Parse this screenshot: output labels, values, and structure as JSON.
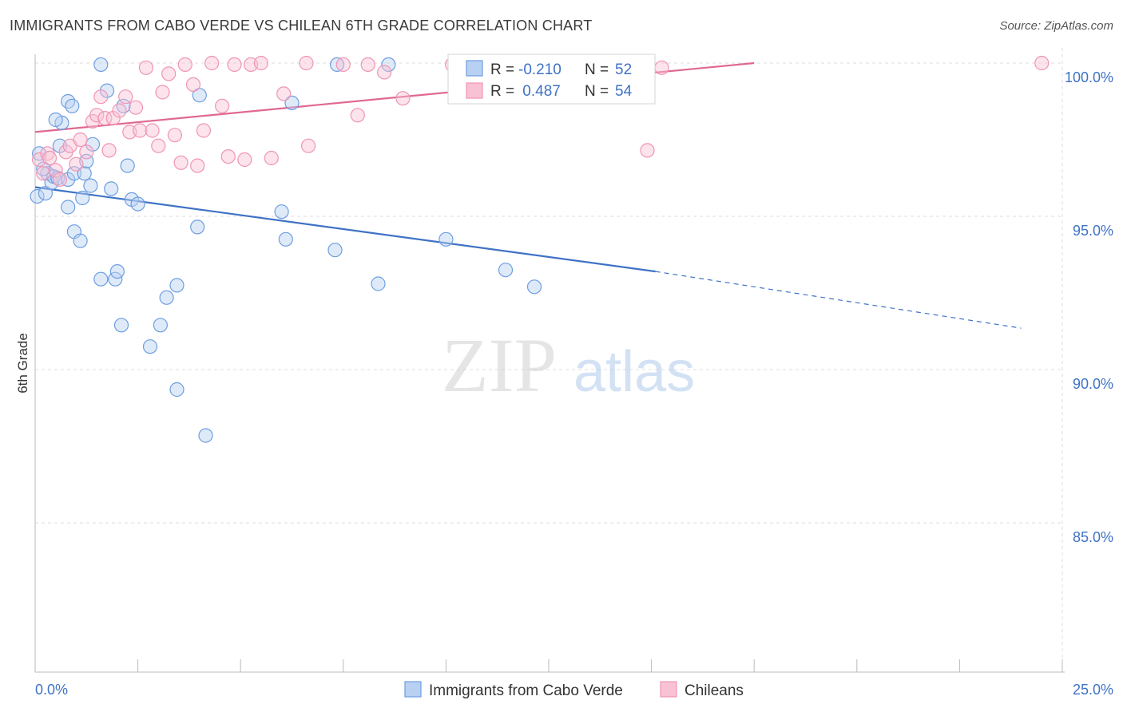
{
  "header": {
    "title": "IMMIGRANTS FROM CABO VERDE VS CHILEAN 6TH GRADE CORRELATION CHART",
    "source": "Source: ZipAtlas.com"
  },
  "watermark": {
    "zip": "ZIP",
    "atlas": "atlas"
  },
  "colors": {
    "blue": "#3f72c6",
    "blue_fill": "#b8d0f2",
    "blue_stroke": "#6e9ee0",
    "pink": "#e06890",
    "pink_fill": "#f8c2d4",
    "pink_stroke": "#ef95b4",
    "grid": "#dcdcdc"
  },
  "legend": {
    "rows": [
      {
        "r_label": "R =",
        "r_value": "-0.210",
        "n_label": "N =",
        "n_value": "52",
        "series": "blue"
      },
      {
        "r_label": "R =",
        "r_value": " 0.487",
        "n_label": "N =",
        "n_value": "54",
        "series": "pink"
      }
    ]
  },
  "chart_data": {
    "type": "scatter",
    "title": "IMMIGRANTS FROM CABO VERDE VS CHILEAN 6TH GRADE CORRELATION CHART",
    "xlabel": "",
    "ylabel": "6th Grade",
    "xlim": [
      0,
      25
    ],
    "ylim": [
      80.5,
      100.5
    ],
    "x_tick_labels": [
      "0.0%",
      "25.0%"
    ],
    "y_ticks": [
      85,
      90,
      95,
      100
    ],
    "y_tick_labels": [
      "85.0%",
      "90.0%",
      "95.0%",
      "100.0%"
    ],
    "grid": true,
    "legend_position": "bottom",
    "series": [
      {
        "name": "Immigrants from Cabo Verde",
        "color": "blue",
        "r": -0.21,
        "n": 52,
        "trend": {
          "x0": 0.0,
          "y0": 95.95,
          "x1": 15.1,
          "y1": 93.2,
          "dash_x1": 24.0,
          "dash_y1": 91.35
        },
        "points": [
          [
            0.1,
            97.05
          ],
          [
            0.05,
            95.65
          ],
          [
            0.25,
            95.75
          ],
          [
            0.3,
            96.4
          ],
          [
            0.4,
            96.1
          ],
          [
            0.45,
            96.3
          ],
          [
            0.55,
            96.25
          ],
          [
            0.6,
            97.3
          ],
          [
            0.65,
            98.05
          ],
          [
            0.8,
            96.2
          ],
          [
            0.8,
            98.75
          ],
          [
            0.9,
            98.6
          ],
          [
            0.95,
            96.4
          ],
          [
            0.5,
            98.15
          ],
          [
            1.15,
            95.6
          ],
          [
            1.2,
            96.4
          ],
          [
            1.25,
            96.8
          ],
          [
            1.35,
            96.0
          ],
          [
            1.4,
            97.35
          ],
          [
            0.8,
            95.3
          ],
          [
            0.95,
            94.5
          ],
          [
            1.1,
            94.2
          ],
          [
            1.6,
            92.95
          ],
          [
            1.75,
            99.1
          ],
          [
            1.85,
            95.9
          ],
          [
            1.95,
            92.95
          ],
          [
            2.0,
            93.2
          ],
          [
            2.1,
            91.45
          ],
          [
            2.15,
            98.6
          ],
          [
            2.25,
            96.65
          ],
          [
            2.35,
            95.55
          ],
          [
            2.5,
            95.4
          ],
          [
            2.8,
            90.75
          ],
          [
            3.05,
            91.45
          ],
          [
            3.2,
            92.35
          ],
          [
            3.45,
            92.75
          ],
          [
            3.45,
            89.35
          ],
          [
            3.95,
            94.65
          ],
          [
            4.0,
            98.95
          ],
          [
            4.15,
            87.85
          ],
          [
            1.6,
            99.95
          ],
          [
            6.0,
            95.15
          ],
          [
            6.1,
            94.25
          ],
          [
            6.25,
            98.7
          ],
          [
            7.3,
            93.9
          ],
          [
            7.35,
            99.95
          ],
          [
            8.35,
            92.8
          ],
          [
            8.6,
            99.95
          ],
          [
            10.0,
            94.25
          ],
          [
            11.45,
            93.25
          ],
          [
            12.15,
            92.7
          ],
          [
            0.2,
            96.55
          ]
        ]
      },
      {
        "name": "Chileans",
        "color": "pink",
        "r": 0.487,
        "n": 54,
        "trend": {
          "x0": 0.0,
          "y0": 97.75,
          "x1": 17.5,
          "y1": 100.0
        },
        "points": [
          [
            0.1,
            96.85
          ],
          [
            0.2,
            96.4
          ],
          [
            0.3,
            97.05
          ],
          [
            0.35,
            96.9
          ],
          [
            0.5,
            96.5
          ],
          [
            0.6,
            96.2
          ],
          [
            0.75,
            97.1
          ],
          [
            0.85,
            97.3
          ],
          [
            1.0,
            96.7
          ],
          [
            1.1,
            97.5
          ],
          [
            1.25,
            97.1
          ],
          [
            1.4,
            98.1
          ],
          [
            1.5,
            98.3
          ],
          [
            1.6,
            98.9
          ],
          [
            1.7,
            98.2
          ],
          [
            1.8,
            97.15
          ],
          [
            1.9,
            98.2
          ],
          [
            2.05,
            98.45
          ],
          [
            2.2,
            98.9
          ],
          [
            2.3,
            97.75
          ],
          [
            2.45,
            98.55
          ],
          [
            2.55,
            97.8
          ],
          [
            2.7,
            99.85
          ],
          [
            2.85,
            97.8
          ],
          [
            3.0,
            97.3
          ],
          [
            3.1,
            99.05
          ],
          [
            3.25,
            99.65
          ],
          [
            3.4,
            97.65
          ],
          [
            3.55,
            96.75
          ],
          [
            3.65,
            99.95
          ],
          [
            3.85,
            99.3
          ],
          [
            3.95,
            96.65
          ],
          [
            4.1,
            97.8
          ],
          [
            4.3,
            100.0
          ],
          [
            4.55,
            98.6
          ],
          [
            4.7,
            96.95
          ],
          [
            4.85,
            99.95
          ],
          [
            5.1,
            96.85
          ],
          [
            5.25,
            99.95
          ],
          [
            5.5,
            100.0
          ],
          [
            5.75,
            96.9
          ],
          [
            6.05,
            99.0
          ],
          [
            6.6,
            100.0
          ],
          [
            6.65,
            97.3
          ],
          [
            7.5,
            99.95
          ],
          [
            7.85,
            98.3
          ],
          [
            8.1,
            99.95
          ],
          [
            8.5,
            99.7
          ],
          [
            8.95,
            98.85
          ],
          [
            10.15,
            99.95
          ],
          [
            13.5,
            99.95
          ],
          [
            14.9,
            97.15
          ],
          [
            15.25,
            99.85
          ],
          [
            24.5,
            100.0
          ]
        ]
      }
    ]
  },
  "bottom_legend": [
    {
      "label": "Immigrants from Cabo Verde",
      "series": "blue"
    },
    {
      "label": "Chileans",
      "series": "pink"
    }
  ]
}
